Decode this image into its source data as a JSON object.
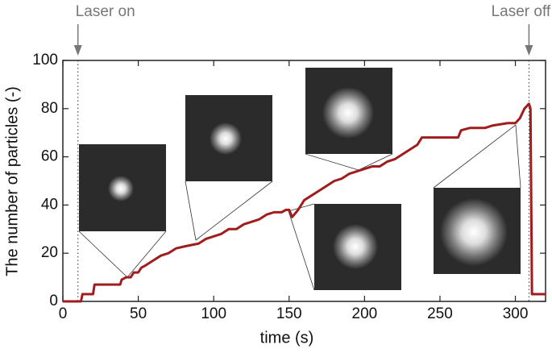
{
  "chart_data": {
    "type": "line",
    "xlabel": "time (s)",
    "ylabel": "The number of particles (-)",
    "xlim": [
      0,
      320
    ],
    "xticks": [
      0,
      50,
      100,
      150,
      200,
      250,
      300
    ],
    "ylim": [
      0,
      100
    ],
    "yticks": [
      0,
      20,
      40,
      60,
      80,
      100
    ],
    "annotations": [
      {
        "text": "Laser on",
        "x": 10
      },
      {
        "text": "Laser off",
        "x": 309
      }
    ],
    "series": [
      {
        "color": "#a11d1d",
        "x": [
          0,
          12,
          13,
          20,
          21,
          38,
          39,
          42,
          45,
          47,
          50,
          52,
          55,
          60,
          65,
          70,
          75,
          82,
          90,
          95,
          100,
          105,
          110,
          115,
          120,
          125,
          130,
          135,
          140,
          145,
          148,
          150,
          152,
          156,
          160,
          165,
          170,
          175,
          180,
          185,
          190,
          195,
          200,
          205,
          210,
          215,
          220,
          225,
          230,
          235,
          238,
          262,
          264,
          270,
          280,
          285,
          295,
          300,
          303,
          306,
          309,
          310,
          311,
          320
        ],
        "values": [
          0,
          0,
          3,
          3,
          7,
          7,
          9,
          10,
          10,
          12,
          12,
          14,
          15,
          17,
          19,
          20,
          22,
          23,
          24,
          26,
          27,
          28,
          30,
          30,
          32,
          33,
          34,
          36,
          37,
          37,
          38,
          38,
          35,
          38,
          42,
          44,
          46,
          48,
          50,
          51,
          53,
          54,
          55,
          56,
          56,
          58,
          59,
          61,
          63,
          65,
          68,
          68,
          71,
          72,
          72,
          73,
          74,
          74,
          76,
          80,
          82,
          80,
          3,
          3
        ]
      }
    ]
  }
}
